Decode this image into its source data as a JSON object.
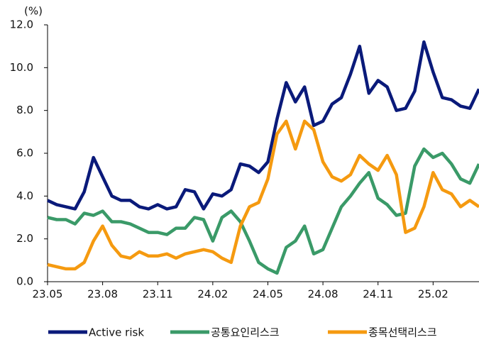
{
  "chart_data": {
    "type": "line",
    "y_unit_label": "(%)",
    "categories": [
      "23.05",
      null,
      null,
      null,
      null,
      null,
      "23.08",
      null,
      null,
      null,
      null,
      null,
      "23.11",
      null,
      null,
      null,
      null,
      null,
      "24.02",
      null,
      null,
      null,
      null,
      null,
      "24.05",
      null,
      null,
      null,
      null,
      null,
      "24.08",
      null,
      null,
      null,
      null,
      null,
      "24.11",
      null,
      null,
      null,
      null,
      null,
      "25.02",
      null,
      null,
      null,
      null,
      null
    ],
    "series": [
      {
        "name": "Active risk",
        "color": "#0a1a7a",
        "values": [
          3.8,
          3.6,
          3.5,
          3.4,
          4.2,
          5.8,
          4.9,
          4.0,
          3.8,
          3.8,
          3.5,
          3.4,
          3.6,
          3.4,
          3.5,
          4.3,
          4.2,
          3.4,
          4.1,
          4.0,
          4.3,
          5.5,
          5.4,
          5.1,
          5.6,
          7.6,
          9.3,
          8.4,
          9.1,
          7.3,
          7.5,
          8.3,
          8.6,
          9.7,
          11.0,
          8.8,
          9.4,
          9.1,
          8.0,
          8.1,
          8.9,
          11.2,
          9.8,
          8.6,
          8.5,
          8.2,
          8.1,
          9.0
        ]
      },
      {
        "name": "공통요인리스크",
        "color": "#3a9a68",
        "values": [
          3.0,
          2.9,
          2.9,
          2.7,
          3.2,
          3.1,
          3.3,
          2.8,
          2.8,
          2.7,
          2.5,
          2.3,
          2.3,
          2.2,
          2.5,
          2.5,
          3.0,
          2.9,
          1.9,
          3.0,
          3.3,
          2.8,
          1.9,
          0.9,
          0.6,
          0.4,
          1.6,
          1.9,
          2.6,
          1.3,
          1.5,
          2.5,
          3.5,
          4.0,
          4.6,
          5.1,
          3.9,
          3.6,
          3.1,
          3.2,
          5.4,
          6.2,
          5.8,
          6.0,
          5.5,
          4.8,
          4.6,
          5.5
        ]
      },
      {
        "name": "종목선택리스크",
        "color": "#f59a10",
        "values": [
          0.8,
          0.7,
          0.6,
          0.6,
          0.9,
          1.9,
          2.6,
          1.7,
          1.2,
          1.1,
          1.4,
          1.2,
          1.2,
          1.3,
          1.1,
          1.3,
          1.4,
          1.5,
          1.4,
          1.1,
          0.9,
          2.6,
          3.5,
          3.7,
          4.8,
          6.9,
          7.5,
          6.2,
          7.5,
          7.1,
          5.6,
          4.9,
          4.7,
          5.0,
          5.9,
          5.5,
          5.2,
          5.9,
          5.0,
          2.3,
          2.5,
          3.5,
          5.1,
          4.3,
          4.1,
          3.5,
          3.8,
          3.5
        ]
      }
    ],
    "ylim": [
      0,
      12
    ],
    "yticks": [
      {
        "value": 0,
        "label": "0.0"
      },
      {
        "value": 2,
        "label": "2.0"
      },
      {
        "value": 4,
        "label": "4.0"
      },
      {
        "value": 6,
        "label": "6.0"
      },
      {
        "value": 8,
        "label": "8.0"
      },
      {
        "value": 10,
        "label": "10.0"
      },
      {
        "value": 12,
        "label": "12.0"
      }
    ],
    "grid": false,
    "legend": "bottom"
  }
}
